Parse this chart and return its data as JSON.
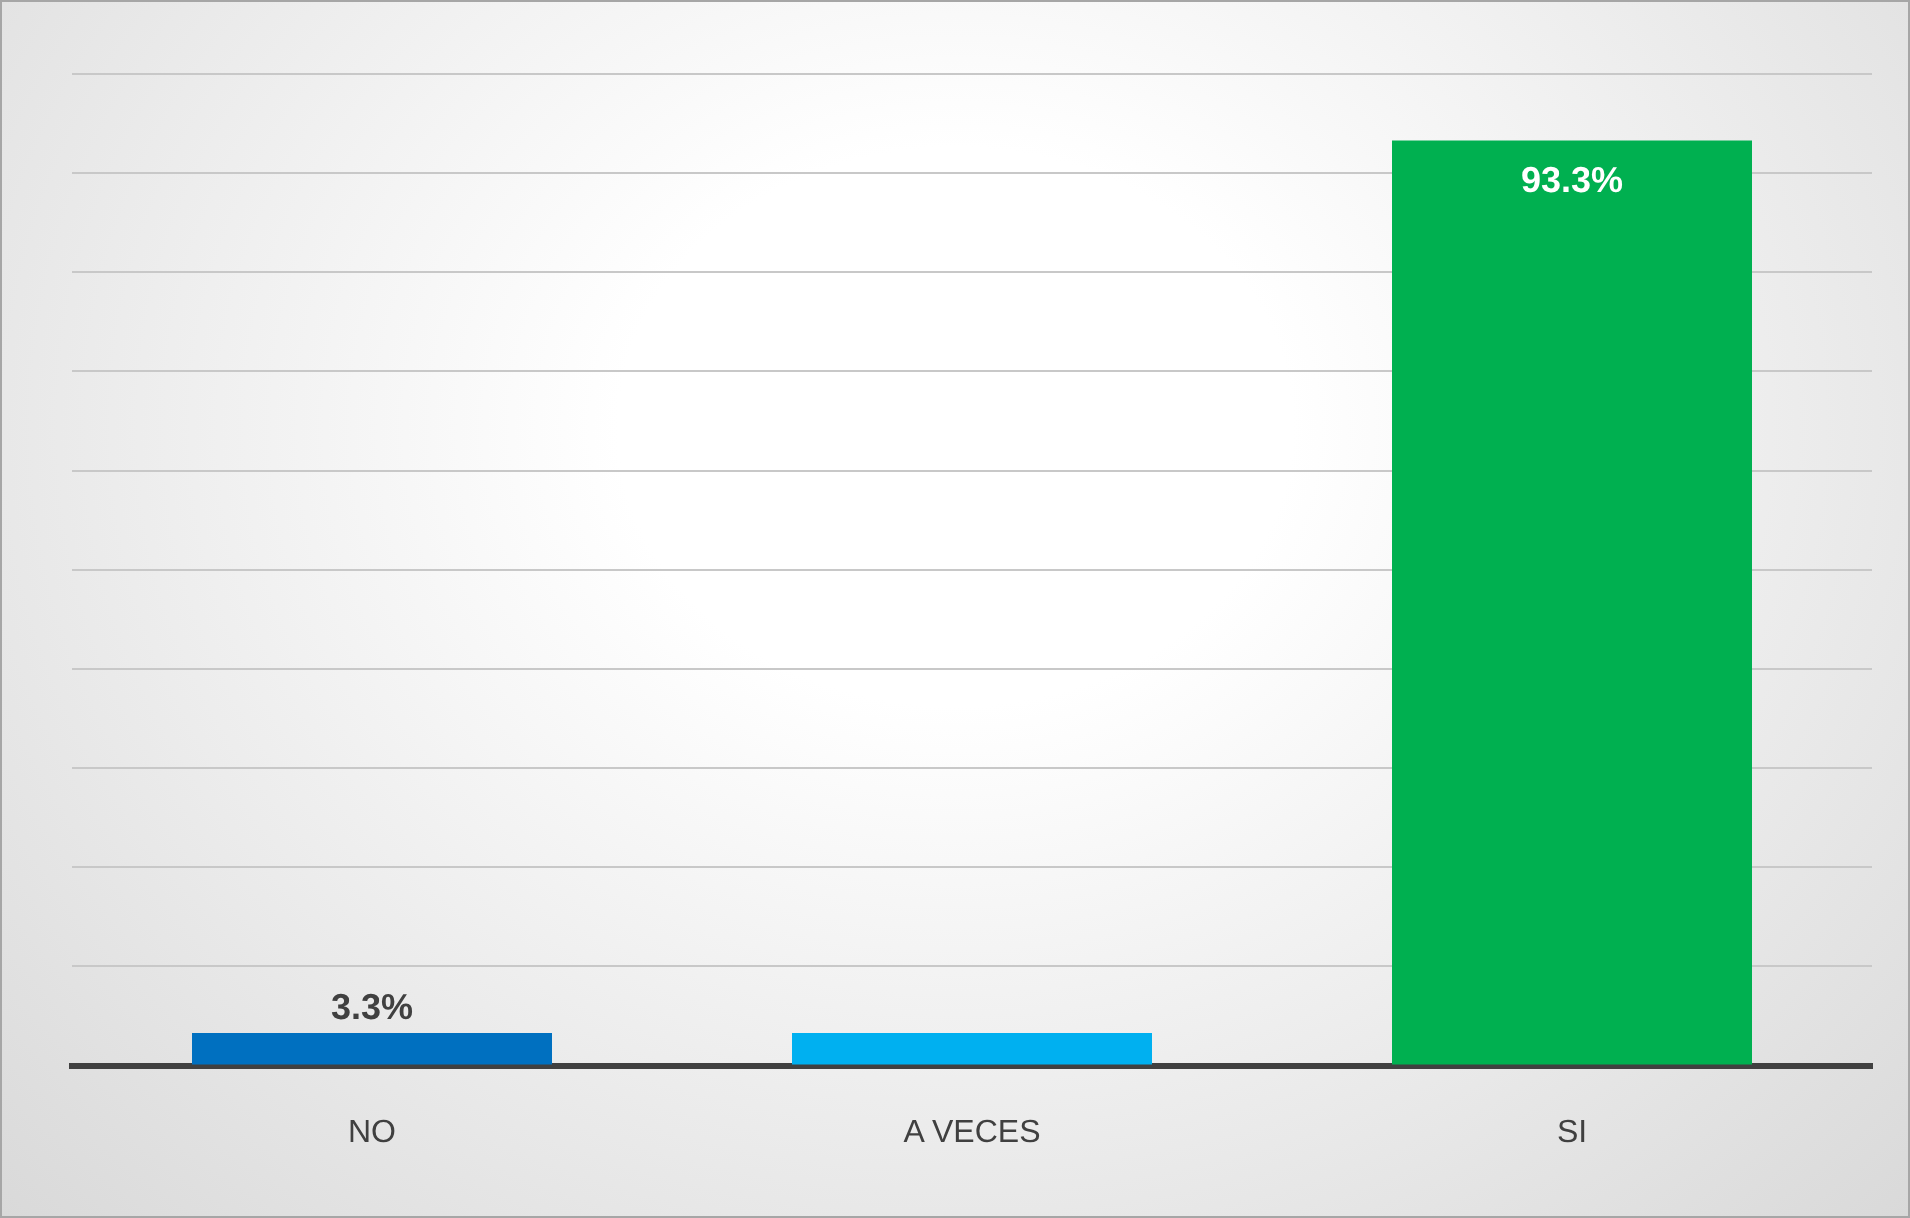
{
  "chart_data": {
    "type": "bar",
    "categories": [
      "NO",
      "A VECES",
      "SI"
    ],
    "values": [
      3.3,
      3.3,
      93.3
    ],
    "colors": [
      "#0070c0",
      "#00b0f0",
      "#00b050"
    ],
    "value_labels": [
      "3.3%",
      null,
      "93.3%"
    ],
    "tick_labels": "x",
    "grid": "y",
    "legend": false
  }
}
